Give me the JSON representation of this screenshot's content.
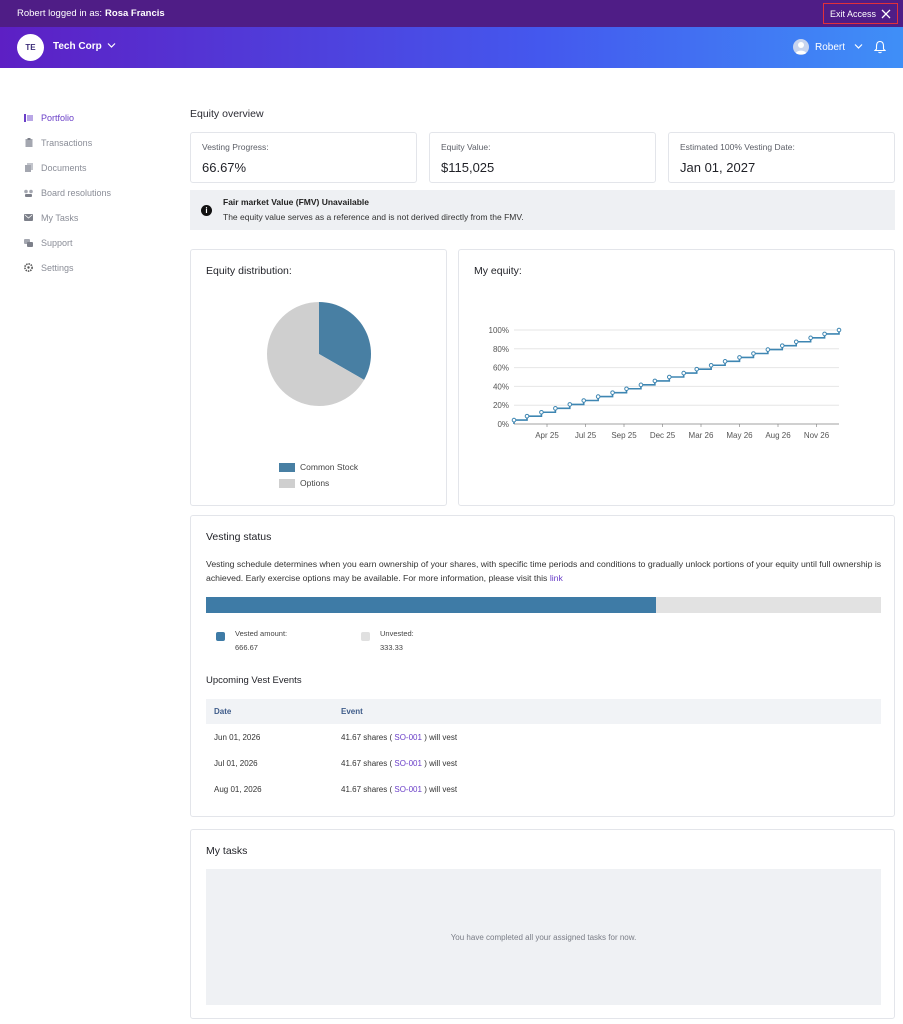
{
  "impersonation": {
    "prefix": "Robert logged in as:",
    "user": "Rosa Francis",
    "exit_label": "Exit Access"
  },
  "header": {
    "org_initials": "TE",
    "org_name": "Tech Corp",
    "user_name": "Robert"
  },
  "sidebar": {
    "items": [
      {
        "label": "Portfolio",
        "icon": "portfolio-icon",
        "active": true
      },
      {
        "label": "Transactions",
        "icon": "clipboard-icon",
        "active": false
      },
      {
        "label": "Documents",
        "icon": "documents-icon",
        "active": false
      },
      {
        "label": "Board resolutions",
        "icon": "board-icon",
        "active": false
      },
      {
        "label": "My Tasks",
        "icon": "tasks-icon",
        "active": false
      },
      {
        "label": "Support",
        "icon": "support-icon",
        "active": false
      },
      {
        "label": "Settings",
        "icon": "gear-icon",
        "active": false
      }
    ]
  },
  "overview": {
    "title": "Equity overview",
    "cards": [
      {
        "label": "Vesting Progress:",
        "value": "66.67%"
      },
      {
        "label": "Equity Value:",
        "value": "$115,025"
      },
      {
        "label": "Estimated 100% Vesting Date:",
        "value": "Jan 01, 2027"
      }
    ],
    "fmv_title": "Fair market Value (FMV) Unavailable",
    "fmv_text": "The equity value serves as a reference and is not derived directly from the FMV."
  },
  "distribution": {
    "title": "Equity distribution:",
    "legend": [
      "Common Stock",
      "Options"
    ]
  },
  "my_equity": {
    "title": "My equity:"
  },
  "chart_data": [
    {
      "type": "pie",
      "title": "Equity distribution:",
      "labels": [
        "Common Stock",
        "Options"
      ],
      "values": [
        33.3,
        66.7
      ],
      "colors": [
        "#487fa3",
        "#cfcfcf"
      ]
    },
    {
      "type": "line",
      "title": "My equity:",
      "x_ticks": [
        "Apr 25",
        "Jul 25",
        "Sep 25",
        "Dec 25",
        "Mar 26",
        "May 26",
        "Aug 26",
        "Nov 26"
      ],
      "y_ticks": [
        "0%",
        "20%",
        "40%",
        "60%",
        "80%",
        "100%"
      ],
      "ylim": [
        0,
        100
      ],
      "xlim": [
        "2025-02-01",
        "2027-01-01"
      ],
      "x": [
        "2025-02-01",
        "2025-03-01",
        "2025-04-01",
        "2025-05-01",
        "2025-06-01",
        "2025-07-01",
        "2025-08-01",
        "2025-09-01",
        "2025-10-01",
        "2025-11-01",
        "2025-12-01",
        "2026-01-01",
        "2026-02-01",
        "2026-03-01",
        "2026-04-01",
        "2026-05-01",
        "2026-06-01",
        "2026-07-01",
        "2026-08-01",
        "2026-09-01",
        "2026-10-01",
        "2026-11-01",
        "2026-12-01",
        "2027-01-01"
      ],
      "values": [
        4.17,
        8.33,
        12.5,
        16.67,
        20.83,
        25,
        29.17,
        33.33,
        37.5,
        41.67,
        45.83,
        50,
        54.17,
        58.33,
        62.5,
        66.67,
        70.83,
        75,
        79.17,
        83.33,
        87.5,
        91.67,
        95.83,
        100
      ],
      "line_style": "step",
      "color": "#3e86b2",
      "grid": true
    }
  ],
  "vesting": {
    "title": "Vesting status",
    "description": "Vesting schedule determines when you earn ownership of your shares, with specific time periods and conditions to gradually unlock portions of your equity until full ownership is achieved. Early exercise options may be available. For more information, please visit this",
    "link_text": "link",
    "vested_fraction": 0.6667,
    "vested_label": "Vested amount:",
    "vested_value": "666.67",
    "unvested_label": "Unvested:",
    "unvested_value": "333.33",
    "vested_color": "#3e7ba6",
    "unvested_color": "#e0e0e0"
  },
  "vest_events": {
    "title": "Upcoming Vest Events",
    "headers": [
      "Date",
      "Event"
    ],
    "rows": [
      {
        "date": "Jun 01, 2026",
        "shares": "41.67 shares (",
        "code": "SO-001",
        "suffix": ") will vest"
      },
      {
        "date": "Jul 01, 2026",
        "shares": "41.67 shares (",
        "code": "SO-001",
        "suffix": ") will vest"
      },
      {
        "date": "Aug 01, 2026",
        "shares": "41.67 shares (",
        "code": "SO-001",
        "suffix": ") will vest"
      }
    ]
  },
  "tasks": {
    "title": "My tasks",
    "empty_text": "You have completed all your assigned tasks for now."
  }
}
